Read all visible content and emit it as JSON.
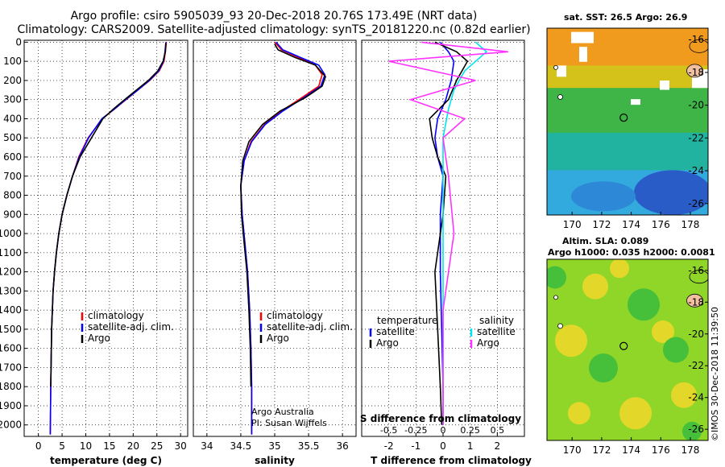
{
  "header": {
    "line1": "Argo profile: csiro 5905039_93 20-Dec-2018 20.76S 173.49E (NRT data)",
    "line2": "Climatology: CARS2009. Satellite-adjusted climatology: synTS_20181220.nc (0.82d earlier)"
  },
  "colors": {
    "climatology": "#ff0000",
    "satellite": "#0000ff",
    "argo": "#000000",
    "s_satellite": "#00e5ee",
    "s_argo": "#ff33ff"
  },
  "chart_data": [
    {
      "type": "line",
      "title": "",
      "xlabel": "temperature (deg C)",
      "ylabel": "",
      "xlim": [
        -3,
        31.5
      ],
      "ylim": [
        2060,
        -10
      ],
      "xticks": [
        0,
        5,
        10,
        15,
        20,
        25,
        30
      ],
      "yticks": [
        0,
        100,
        200,
        300,
        400,
        500,
        600,
        700,
        800,
        900,
        1000,
        1100,
        1200,
        1300,
        1400,
        1500,
        1600,
        1700,
        1800,
        1900,
        2000
      ],
      "legend": [
        "climatology",
        "satellite-adj. clim.",
        "Argo"
      ],
      "series": [
        {
          "name": "climatology",
          "color": "#ff0000",
          "x": [
            27,
            26.8,
            26.5,
            25.5,
            23.5,
            21,
            18.5,
            16,
            13.5,
            10.5,
            8.5,
            7.2,
            6.0,
            5.0,
            4.3,
            3.8,
            3.4,
            3.1,
            2.8,
            2.6,
            2.5
          ],
          "y": [
            0,
            50,
            100,
            150,
            200,
            250,
            300,
            350,
            400,
            500,
            600,
            700,
            800,
            900,
            1000,
            1100,
            1200,
            1300,
            1500,
            1800,
            2050
          ]
        },
        {
          "name": "satellite-adj. clim.",
          "color": "#0000ff",
          "x": [
            26.9,
            26.7,
            26.4,
            25.4,
            23.4,
            21,
            18.4,
            16,
            13.4,
            10.6,
            8.6,
            7.2,
            6.0,
            5.0,
            4.3,
            3.8,
            3.4,
            3.1,
            2.8,
            2.6,
            2.5
          ],
          "y": [
            0,
            50,
            100,
            150,
            200,
            250,
            300,
            350,
            400,
            500,
            600,
            700,
            800,
            900,
            1000,
            1100,
            1200,
            1300,
            1500,
            1800,
            2050
          ]
        },
        {
          "name": "Argo",
          "color": "#000000",
          "x": [
            26.9,
            26.8,
            26.3,
            25.2,
            23.2,
            20.7,
            18.2,
            15.8,
            13.6,
            11.2,
            8.8,
            7.2,
            6.0,
            5.0,
            4.3,
            3.8,
            3.4,
            3.1,
            2.8,
            2.6
          ],
          "y": [
            5,
            50,
            100,
            150,
            200,
            250,
            300,
            350,
            400,
            500,
            600,
            700,
            800,
            900,
            1000,
            1100,
            1200,
            1300,
            1500,
            1800
          ]
        }
      ]
    },
    {
      "type": "line",
      "title": "",
      "xlabel": "salinity",
      "ylabel": "",
      "xlim": [
        33.8,
        36.2
      ],
      "ylim": [
        2060,
        -10
      ],
      "xticks": [
        34,
        34.5,
        35,
        35.5,
        36
      ],
      "xtick_labels": [
        "34",
        "34.5",
        "35",
        "35.5",
        "36"
      ],
      "legend": [
        "climatology",
        "satellite-adj. clim.",
        "Argo"
      ],
      "annotation": [
        "Argo Australia",
        "PI: Susan Wijffels"
      ],
      "series": [
        {
          "name": "climatology",
          "color": "#ff0000",
          "x": [
            35.0,
            35.1,
            35.35,
            35.6,
            35.7,
            35.65,
            35.4,
            35.1,
            34.85,
            34.65,
            34.55,
            34.5,
            34.52,
            34.56,
            34.6,
            34.63,
            34.65,
            34.66,
            34.66
          ],
          "y": [
            0,
            40,
            80,
            120,
            170,
            230,
            290,
            360,
            430,
            520,
            620,
            750,
            900,
            1050,
            1200,
            1400,
            1600,
            1800,
            2050
          ]
        },
        {
          "name": "satellite-adj. clim.",
          "color": "#0000ff",
          "x": [
            35.02,
            35.12,
            35.38,
            35.65,
            35.74,
            35.68,
            35.43,
            35.12,
            34.86,
            34.66,
            34.55,
            34.5,
            34.52,
            34.56,
            34.6,
            34.63,
            34.65,
            34.66,
            34.66
          ],
          "y": [
            0,
            40,
            80,
            120,
            170,
            230,
            290,
            360,
            430,
            520,
            620,
            750,
            900,
            1050,
            1200,
            1400,
            1600,
            1800,
            2050
          ]
        },
        {
          "name": "Argo",
          "color": "#000000",
          "x": [
            35.0,
            35.05,
            35.3,
            35.6,
            35.75,
            35.7,
            35.45,
            35.08,
            34.82,
            34.62,
            34.53,
            34.5,
            34.51,
            34.55,
            34.59,
            34.62,
            34.64,
            34.65
          ],
          "y": [
            10,
            40,
            80,
            120,
            180,
            230,
            290,
            360,
            430,
            520,
            620,
            750,
            900,
            1050,
            1200,
            1400,
            1600,
            1800
          ]
        }
      ]
    },
    {
      "type": "line",
      "title": "",
      "xlabel": "T difference from climatology",
      "xlabel_top": "S difference from climatology",
      "xlim": [
        -3,
        3
      ],
      "ylim": [
        2060,
        -10
      ],
      "xticks": [
        -2,
        -1,
        0,
        1,
        2
      ],
      "xticks_top": [
        -0.5,
        -0.25,
        0,
        0.25,
        0.5
      ],
      "xticks_top_labels": [
        "-0.5",
        "-0.25",
        "0",
        "0.25",
        "0.5"
      ],
      "legend_temperature_label": "temperature",
      "legend_salinity_label": "salinity",
      "legend": [
        "satellite",
        "Argo",
        "satellite",
        "Argo"
      ],
      "series": [
        {
          "name": "T satellite",
          "color": "#0000ff",
          "x": [
            -0.1,
            0.2,
            0.4,
            0.3,
            0.1,
            -0.2,
            -0.3,
            -0.2,
            0,
            -0.1,
            -0.1,
            -0.05,
            0,
            0
          ],
          "y": [
            0,
            50,
            100,
            200,
            300,
            400,
            500,
            600,
            700,
            900,
            1200,
            1500,
            1800,
            2000
          ]
        },
        {
          "name": "T Argo",
          "color": "#000000",
          "x": [
            -0.3,
            0.5,
            0.9,
            0.5,
            0.2,
            -0.5,
            -0.4,
            -0.2,
            0.1,
            0,
            -0.3,
            -0.2,
            -0.1,
            -0.05
          ],
          "y": [
            0,
            50,
            100,
            200,
            300,
            400,
            500,
            600,
            700,
            900,
            1200,
            1500,
            1800,
            2000
          ]
        },
        {
          "name": "S satellite",
          "color": "#00e5ee",
          "x": [
            0.3,
            0.4,
            0.2,
            0.1,
            0.05,
            0,
            0,
            0,
            0,
            0
          ],
          "y": [
            0,
            50,
            150,
            250,
            350,
            500,
            800,
            1200,
            1600,
            2000
          ]
        },
        {
          "name": "S Argo",
          "color": "#ff33ff",
          "x": [
            -0.2,
            0.6,
            -0.5,
            0.3,
            -0.3,
            0.2,
            0,
            0.05,
            0.1,
            0,
            0
          ],
          "y": [
            0,
            50,
            100,
            200,
            300,
            400,
            500,
            700,
            1000,
            1400,
            2000
          ]
        }
      ]
    },
    {
      "type": "heatmap",
      "title": "sat. SST: 26.5 Argo: 26.9",
      "xticks": [
        170,
        172,
        174,
        176,
        178
      ],
      "yticks": [
        -16,
        -18,
        -20,
        -22,
        -24,
        -26
      ],
      "xlim": [
        168.3,
        179.2
      ],
      "ylim": [
        -26.7,
        -15.3
      ],
      "marker": {
        "lon": 173.49,
        "lat": -20.76
      }
    },
    {
      "type": "heatmap",
      "title": "Altim. SLA: 0.089",
      "subtitle": "Argo h1000: 0.035 h2000: 0.0081",
      "xticks": [
        170,
        172,
        174,
        176,
        178
      ],
      "yticks": [
        -16,
        -18,
        -20,
        -22,
        -24,
        -26
      ],
      "xlim": [
        168.3,
        179.2
      ],
      "ylim": [
        -26.7,
        -15.3
      ],
      "marker": {
        "lon": 173.49,
        "lat": -20.76
      }
    }
  ],
  "footer": {
    "imos_label": "©IMOS 30-Dec-2018 11:39:50"
  }
}
